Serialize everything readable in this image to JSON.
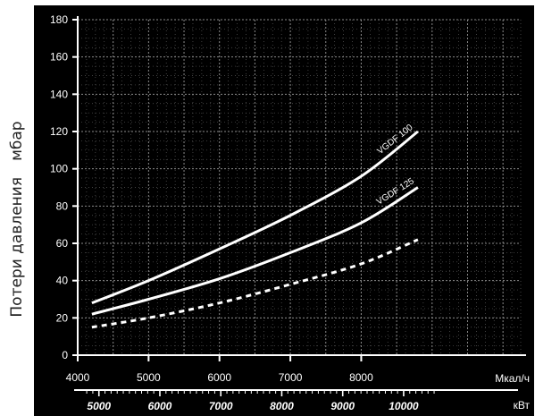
{
  "chart_data": {
    "type": "line",
    "title": "",
    "ylabel": "Потери давления",
    "yunit": "мбар",
    "xlabel": "Мкал/ч",
    "x2label": "кВт",
    "xlim": [
      4000,
      10250
    ],
    "ylim": [
      0,
      180
    ],
    "x_ticks": [
      4000,
      5000,
      6000,
      7000,
      8000
    ],
    "y_ticks": [
      0,
      20,
      40,
      60,
      80,
      100,
      120,
      140,
      160,
      180
    ],
    "x2_ticks": [
      5000,
      6000,
      7000,
      8000,
      9000,
      10000
    ],
    "x2_per_x": 1.163,
    "grid": true,
    "background": "#000000",
    "line_color": "#ffffff",
    "series": [
      {
        "name": "VGDF 100",
        "x": [
          4200,
          5000,
          6000,
          7000,
          8000,
          8800
        ],
        "y": [
          28,
          40,
          57,
          75,
          96,
          120
        ]
      },
      {
        "name": "VGDF 125",
        "x": [
          4200,
          5000,
          6000,
          7000,
          8000,
          8800
        ],
        "y": [
          22,
          30,
          41,
          55,
          71,
          90
        ]
      },
      {
        "name": "",
        "style": "dashed",
        "x": [
          4200,
          5000,
          6000,
          7000,
          8000,
          8800
        ],
        "y": [
          15,
          20,
          28,
          38,
          49,
          62
        ]
      }
    ]
  }
}
